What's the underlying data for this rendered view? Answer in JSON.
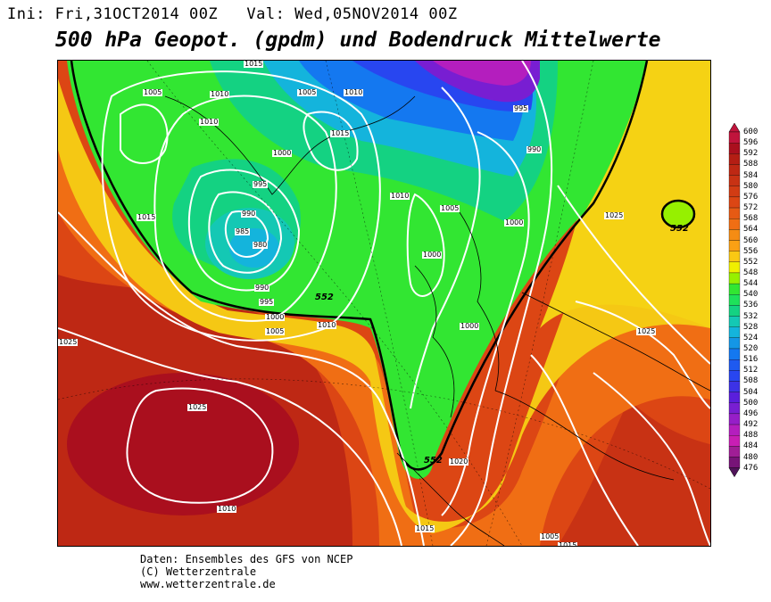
{
  "header": {
    "init_label": "Ini: Fri,31OCT2014 00Z",
    "valid_label": "Val: Wed,05NOV2014 00Z"
  },
  "title": "500 hPa Geopot. (gpdm) und Bodendruck Mittelwerte",
  "map": {
    "isobar_labels": [
      "1015",
      "1005",
      "1010",
      "1005",
      "1010",
      "1010",
      "1015",
      "1000",
      "995",
      "990",
      "985",
      "980",
      "990",
      "995",
      "1000",
      "1005",
      "1010",
      "1010",
      "1005",
      "1000",
      "995",
      "990",
      "1000",
      "1000",
      "1015",
      "1025",
      "1025",
      "1025",
      "1010",
      "1015",
      "1005",
      "1020",
      "1025",
      "1015"
    ],
    "geopot_labels": [
      "552",
      "552",
      "552"
    ]
  },
  "colorbar": {
    "levels": [
      "600",
      "596",
      "592",
      "588",
      "584",
      "580",
      "576",
      "572",
      "568",
      "564",
      "560",
      "556",
      "552",
      "548",
      "544",
      "540",
      "536",
      "532",
      "528",
      "524",
      "520",
      "516",
      "512",
      "508",
      "504",
      "500",
      "496",
      "492",
      "488",
      "484",
      "480",
      "476"
    ],
    "colors": [
      "#c0143c",
      "#aa0f1e",
      "#b41e14",
      "#be2814",
      "#c83214",
      "#d23c14",
      "#dc4614",
      "#e65a14",
      "#f06e14",
      "#f58c14",
      "#faa014",
      "#fac814",
      "#f0f000",
      "#96f000",
      "#32e632",
      "#1ee15a",
      "#14d282",
      "#14c8b4",
      "#14b4dc",
      "#1496e6",
      "#1478f0",
      "#1e5af0",
      "#2846f0",
      "#3c32e6",
      "#5a1edc",
      "#781ed2",
      "#961ec8",
      "#b41ebe",
      "#c81eb4",
      "#a01e96",
      "#781478",
      "#50145a"
    ]
  },
  "footer": {
    "line1": "Daten: Ensembles des GFS von NCEP",
    "line2": "(C) Wetterzentrale",
    "line3": "www.wetterzentrale.de"
  }
}
